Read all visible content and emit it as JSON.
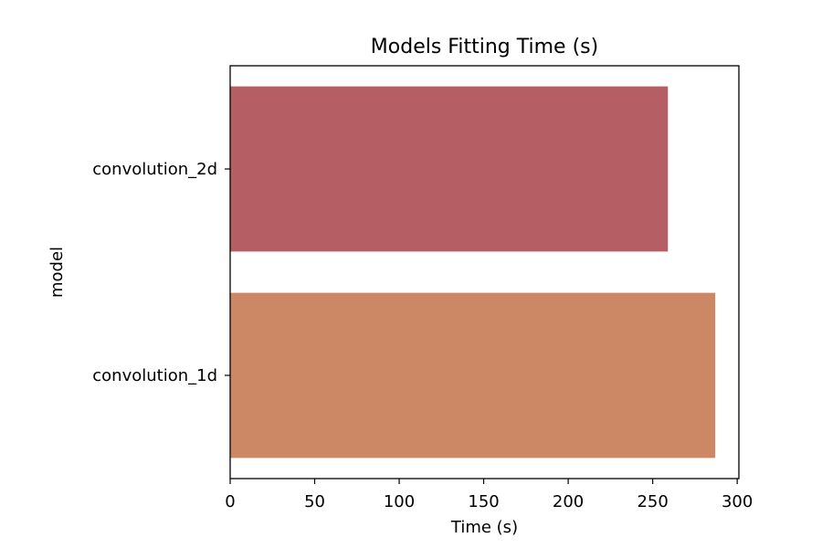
{
  "chart_data": {
    "type": "bar",
    "orientation": "horizontal",
    "title": "Models Fitting Time (s)",
    "xlabel": "Time (s)",
    "ylabel": "model",
    "categories": [
      "convolution_2d",
      "convolution_1d"
    ],
    "values": [
      259,
      287
    ],
    "colors": [
      "#b55e63",
      "#cc8864"
    ],
    "xlim": [
      0,
      301
    ],
    "xticks": [
      0,
      50,
      100,
      150,
      200,
      250,
      300
    ],
    "grid": false,
    "legend": "none"
  }
}
